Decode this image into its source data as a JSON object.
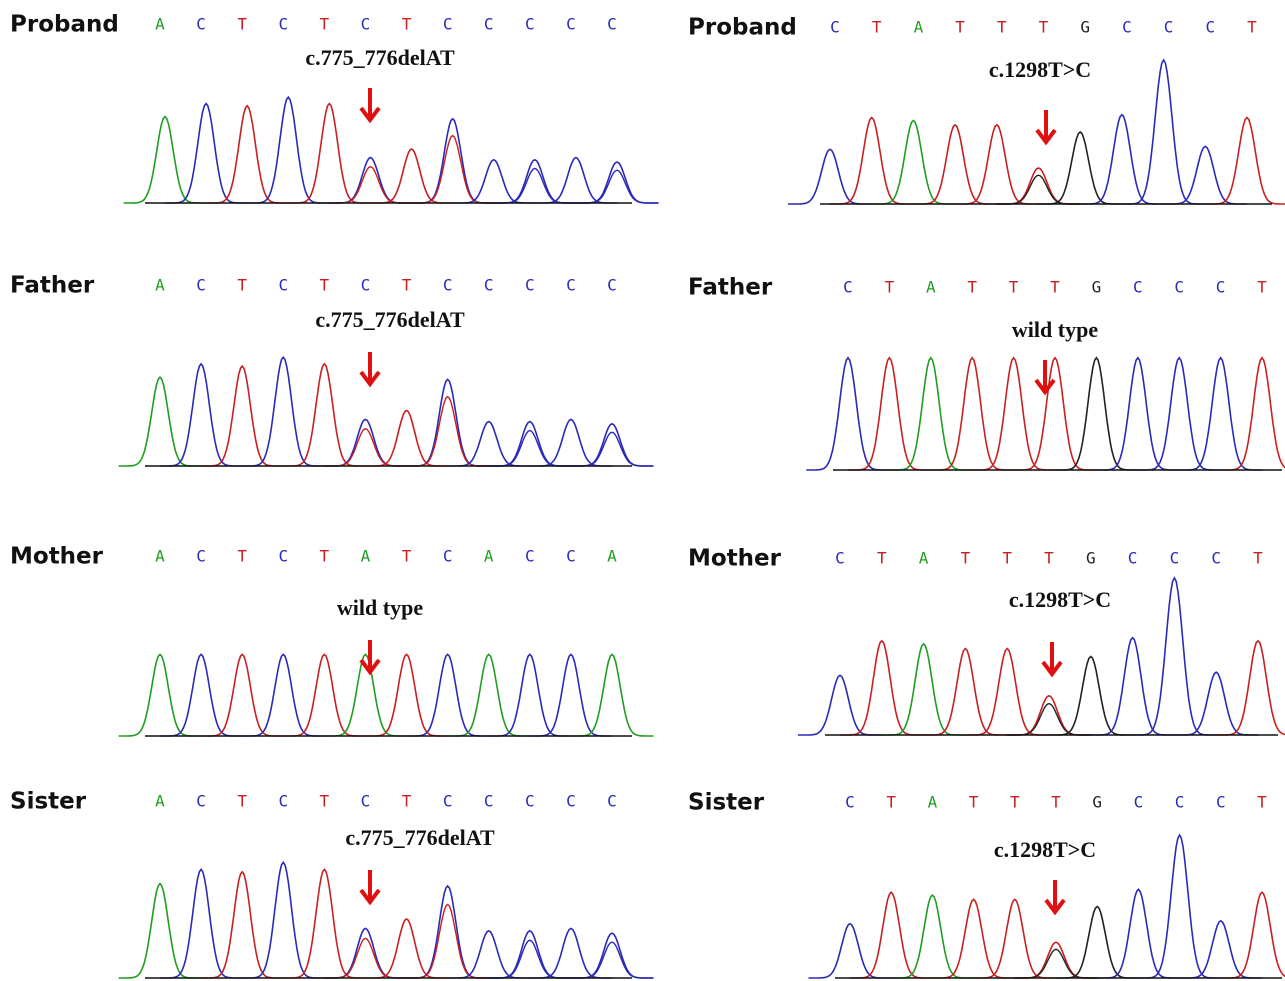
{
  "base_colors": {
    "A": "#1f9e1f",
    "C": "#2a2ab8",
    "T": "#c82020",
    "G": "#222222"
  },
  "panels": [
    {
      "label": "Proband",
      "bases": [
        "A",
        "C",
        "T",
        "C",
        "T",
        "C",
        "T",
        "C",
        "C",
        "C",
        "C",
        "C"
      ],
      "annotation": "c.775_776delAT"
    },
    {
      "label": "Father",
      "bases": [
        "A",
        "C",
        "T",
        "C",
        "T",
        "C",
        "T",
        "C",
        "C",
        "C",
        "C",
        "C"
      ],
      "annotation": "c.775_776delAT"
    },
    {
      "label": "Mother",
      "bases": [
        "A",
        "C",
        "T",
        "C",
        "T",
        "A",
        "T",
        "C",
        "A",
        "C",
        "C",
        "A"
      ],
      "annotation": "wild type"
    },
    {
      "label": "Sister",
      "bases": [
        "A",
        "C",
        "T",
        "C",
        "T",
        "C",
        "T",
        "C",
        "C",
        "C",
        "C",
        "C"
      ],
      "annotation": "c.775_776delAT"
    },
    {
      "label": "Proband",
      "bases": [
        "C",
        "T",
        "A",
        "T",
        "T",
        "T",
        "G",
        "C",
        "C",
        "C",
        "T"
      ],
      "annotation": "c.1298T>C"
    },
    {
      "label": "Father",
      "bases": [
        "C",
        "T",
        "A",
        "T",
        "T",
        "T",
        "G",
        "C",
        "C",
        "C",
        "T"
      ],
      "annotation": "wild type"
    },
    {
      "label": "Mother",
      "bases": [
        "C",
        "T",
        "A",
        "T",
        "T",
        "T",
        "G",
        "C",
        "C",
        "C",
        "T"
      ],
      "annotation": "c.1298T>C"
    },
    {
      "label": "Sister",
      "bases": [
        "C",
        "T",
        "A",
        "T",
        "T",
        "T",
        "G",
        "C",
        "C",
        "C",
        "T"
      ],
      "annotation": "c.1298T>C"
    }
  ]
}
